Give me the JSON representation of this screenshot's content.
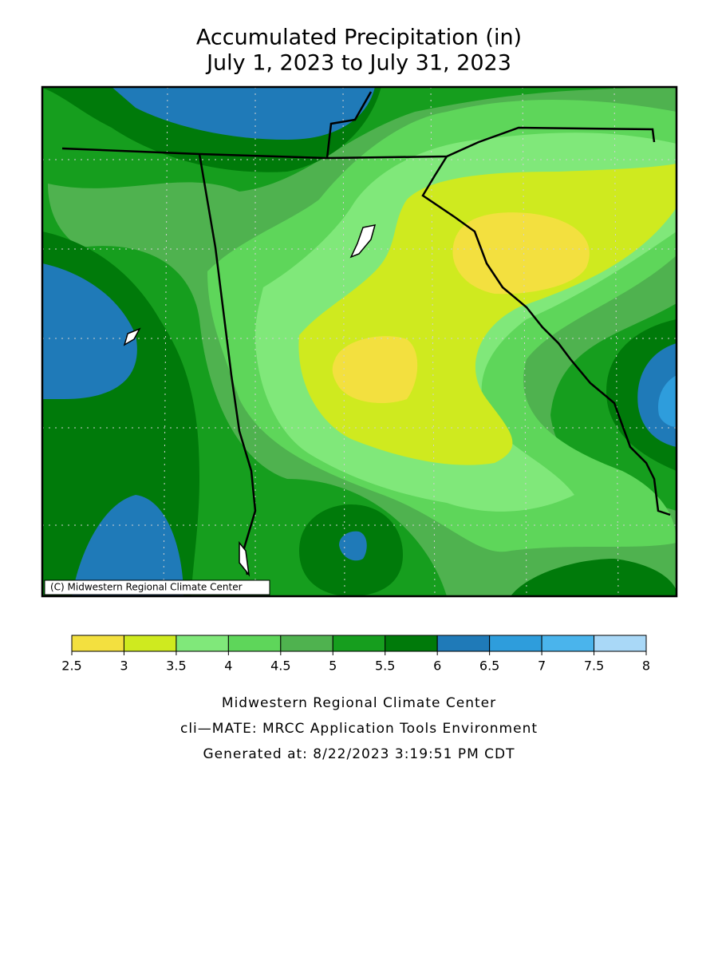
{
  "title": [
    "Accumulated Precipitation (in)",
    "July 1, 2023 to July 31, 2023"
  ],
  "credit": "(C) Midwestern Regional Climate Center",
  "legend": {
    "ticks": [
      2.5,
      3,
      3.5,
      4,
      4.5,
      5,
      5.5,
      6,
      6.5,
      7,
      7.5,
      8
    ],
    "colors": [
      "#f3e03f",
      "#cfea1f",
      "#80e87a",
      "#5ed65a",
      "#4fb24f",
      "#169e1e",
      "#007a0a",
      "#1f7ab8",
      "#2e9ddc",
      "#4ab4ec",
      "#a9d8f7"
    ]
  },
  "footer": [
    "Midwestern Regional Climate Center",
    "cli—MATE: MRCC Application Tools Environment",
    "Generated at: 8/22/2023 3:19:51 PM CDT"
  ]
}
